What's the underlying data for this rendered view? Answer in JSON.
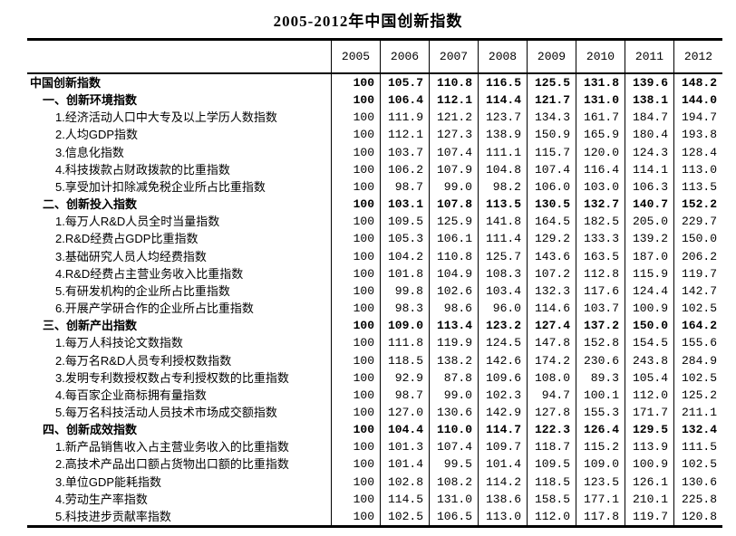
{
  "chart_data": {
    "type": "table",
    "title": "2005-2012年中国创新指数",
    "columns": [
      "2005",
      "2006",
      "2007",
      "2008",
      "2009",
      "2010",
      "2011",
      "2012"
    ],
    "rows": [
      {
        "label": "中国创新指数",
        "indent": 0,
        "bold": true,
        "values": [
          "100",
          "105.7",
          "110.8",
          "116.5",
          "125.5",
          "131.8",
          "139.6",
          "148.2"
        ]
      },
      {
        "label": "一、创新环境指数",
        "indent": 1,
        "bold": true,
        "values": [
          "100",
          "106.4",
          "112.1",
          "114.4",
          "121.7",
          "131.0",
          "138.1",
          "144.0"
        ]
      },
      {
        "label": "1.经济活动人口中大专及以上学历人数指数",
        "indent": 2,
        "bold": false,
        "values": [
          "100",
          "111.9",
          "121.2",
          "123.7",
          "134.3",
          "161.7",
          "184.7",
          "194.7"
        ]
      },
      {
        "label": "2.人均GDP指数",
        "indent": 2,
        "bold": false,
        "values": [
          "100",
          "112.1",
          "127.3",
          "138.9",
          "150.9",
          "165.9",
          "180.4",
          "193.8"
        ]
      },
      {
        "label": "3.信息化指数",
        "indent": 2,
        "bold": false,
        "values": [
          "100",
          "103.7",
          "107.4",
          "111.1",
          "115.7",
          "120.0",
          "124.3",
          "128.4"
        ]
      },
      {
        "label": "4.科技拨款占财政拨款的比重指数",
        "indent": 2,
        "bold": false,
        "values": [
          "100",
          "106.2",
          "107.9",
          "104.8",
          "107.4",
          "116.4",
          "114.1",
          "113.0"
        ]
      },
      {
        "label": "5.享受加计扣除减免税企业所占比重指数",
        "indent": 2,
        "bold": false,
        "values": [
          "100",
          "98.7",
          "99.0",
          "98.2",
          "106.0",
          "103.0",
          "106.3",
          "113.5"
        ]
      },
      {
        "label": "二、创新投入指数",
        "indent": 1,
        "bold": true,
        "values": [
          "100",
          "103.1",
          "107.8",
          "113.5",
          "130.5",
          "132.7",
          "140.7",
          "152.2"
        ]
      },
      {
        "label": "1.每万人R&D人员全时当量指数",
        "indent": 2,
        "bold": false,
        "values": [
          "100",
          "109.5",
          "125.9",
          "141.8",
          "164.5",
          "182.5",
          "205.0",
          "229.7"
        ]
      },
      {
        "label": "2.R&D经费占GDP比重指数",
        "indent": 2,
        "bold": false,
        "values": [
          "100",
          "105.3",
          "106.1",
          "111.4",
          "129.2",
          "133.3",
          "139.2",
          "150.0"
        ]
      },
      {
        "label": "3.基础研究人员人均经费指数",
        "indent": 2,
        "bold": false,
        "values": [
          "100",
          "104.2",
          "110.8",
          "125.7",
          "143.6",
          "163.5",
          "187.0",
          "206.2"
        ]
      },
      {
        "label": "4.R&D经费占主营业务收入比重指数",
        "indent": 2,
        "bold": false,
        "values": [
          "100",
          "101.8",
          "104.9",
          "108.3",
          "107.2",
          "112.8",
          "115.9",
          "119.7"
        ]
      },
      {
        "label": "5.有研发机构的企业所占比重指数",
        "indent": 2,
        "bold": false,
        "values": [
          "100",
          "99.8",
          "102.6",
          "103.4",
          "132.3",
          "117.6",
          "124.4",
          "142.7"
        ]
      },
      {
        "label": "6.开展产学研合作的企业所占比重指数",
        "indent": 2,
        "bold": false,
        "values": [
          "100",
          "98.3",
          "98.6",
          "96.0",
          "114.6",
          "103.7",
          "100.9",
          "102.5"
        ]
      },
      {
        "label": "三、创新产出指数",
        "indent": 1,
        "bold": true,
        "values": [
          "100",
          "109.0",
          "113.4",
          "123.2",
          "127.4",
          "137.2",
          "150.0",
          "164.2"
        ]
      },
      {
        "label": "1.每万人科技论文数指数",
        "indent": 2,
        "bold": false,
        "values": [
          "100",
          "111.8",
          "119.9",
          "124.5",
          "147.8",
          "152.8",
          "154.5",
          "155.6"
        ]
      },
      {
        "label": "2.每万名R&D人员专利授权数指数",
        "indent": 2,
        "bold": false,
        "values": [
          "100",
          "118.5",
          "138.2",
          "142.6",
          "174.2",
          "230.6",
          "243.8",
          "284.9"
        ]
      },
      {
        "label": "3.发明专利数授权数占专利授权数的比重指数",
        "indent": 2,
        "bold": false,
        "values": [
          "100",
          "92.9",
          "87.8",
          "109.6",
          "108.0",
          "89.3",
          "105.4",
          "102.5"
        ]
      },
      {
        "label": "4.每百家企业商标拥有量指数",
        "indent": 2,
        "bold": false,
        "values": [
          "100",
          "98.7",
          "99.0",
          "102.3",
          "94.7",
          "100.1",
          "112.0",
          "125.2"
        ]
      },
      {
        "label": "5.每万名科技活动人员技术市场成交额指数",
        "indent": 2,
        "bold": false,
        "values": [
          "100",
          "127.0",
          "130.6",
          "142.9",
          "127.8",
          "155.3",
          "171.7",
          "211.1"
        ]
      },
      {
        "label": "四、创新成效指数",
        "indent": 1,
        "bold": true,
        "values": [
          "100",
          "104.4",
          "110.0",
          "114.7",
          "122.3",
          "126.4",
          "129.5",
          "132.4"
        ]
      },
      {
        "label": "1.新产品销售收入占主营业务收入的比重指数",
        "indent": 2,
        "bold": false,
        "values": [
          "100",
          "101.3",
          "107.4",
          "109.7",
          "118.7",
          "115.2",
          "113.9",
          "111.5"
        ]
      },
      {
        "label": "2.高技术产品出口额占货物出口额的比重指数",
        "indent": 2,
        "bold": false,
        "values": [
          "100",
          "101.4",
          "99.5",
          "101.4",
          "109.5",
          "109.0",
          "100.9",
          "102.5"
        ]
      },
      {
        "label": "3.单位GDP能耗指数",
        "indent": 2,
        "bold": false,
        "values": [
          "100",
          "102.8",
          "108.2",
          "114.2",
          "118.5",
          "123.5",
          "126.1",
          "130.6"
        ]
      },
      {
        "label": "4.劳动生产率指数",
        "indent": 2,
        "bold": false,
        "values": [
          "100",
          "114.5",
          "131.0",
          "138.6",
          "158.5",
          "177.1",
          "210.1",
          "225.8"
        ]
      },
      {
        "label": "5.科技进步贡献率指数",
        "indent": 2,
        "bold": false,
        "values": [
          "100",
          "102.5",
          "106.5",
          "113.0",
          "112.0",
          "117.8",
          "119.7",
          "120.8"
        ]
      }
    ]
  }
}
